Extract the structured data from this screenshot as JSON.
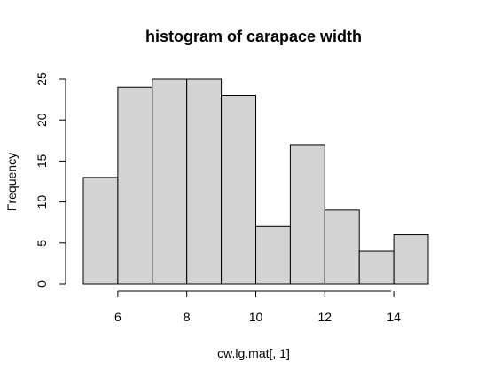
{
  "chart_data": {
    "type": "bar",
    "title": "histogram of carapace width",
    "xlabel": "cw.lg.mat[, 1]",
    "ylabel": "Frequency",
    "bins": [
      {
        "x0": 5,
        "x1": 6,
        "count": 13
      },
      {
        "x0": 6,
        "x1": 7,
        "count": 24
      },
      {
        "x0": 7,
        "x1": 8,
        "count": 25
      },
      {
        "x0": 8,
        "x1": 9,
        "count": 25
      },
      {
        "x0": 9,
        "x1": 10,
        "count": 23
      },
      {
        "x0": 10,
        "x1": 11,
        "count": 7
      },
      {
        "x0": 11,
        "x1": 12,
        "count": 17
      },
      {
        "x0": 12,
        "x1": 13,
        "count": 9
      },
      {
        "x0": 13,
        "x1": 14,
        "count": 4
      },
      {
        "x0": 14,
        "x1": 15,
        "count": 6
      }
    ],
    "xlim": [
      5,
      15
    ],
    "ylim": [
      0,
      25
    ],
    "x_ticks": [
      6,
      8,
      10,
      12,
      14
    ],
    "y_ticks": [
      0,
      5,
      10,
      15,
      20,
      25
    ],
    "grid": false,
    "colors": {
      "bar_fill": "#d3d3d3",
      "bar_stroke": "#000000"
    }
  }
}
